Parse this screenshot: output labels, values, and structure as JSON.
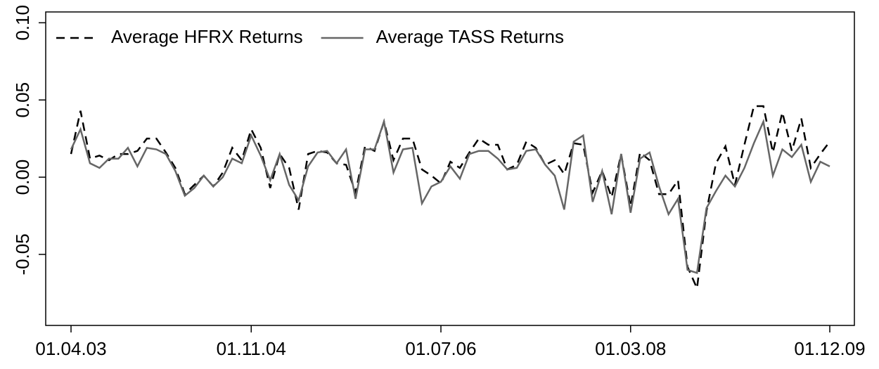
{
  "chart_data": {
    "type": "line",
    "categories": [
      "01.04.03",
      null,
      null,
      null,
      null,
      null,
      null,
      null,
      null,
      null,
      null,
      null,
      null,
      null,
      null,
      null,
      null,
      null,
      null,
      "01.11.04",
      null,
      null,
      null,
      null,
      null,
      null,
      null,
      null,
      null,
      null,
      null,
      null,
      null,
      null,
      null,
      null,
      null,
      null,
      null,
      "01.07.06",
      null,
      null,
      null,
      null,
      null,
      null,
      null,
      null,
      null,
      null,
      null,
      null,
      null,
      null,
      null,
      null,
      null,
      null,
      null,
      "01.03.08",
      null,
      null,
      null,
      null,
      null,
      null,
      null,
      null,
      null,
      null,
      null,
      null,
      null,
      null,
      null,
      null,
      null,
      null,
      null,
      null,
      "01.12.09"
    ],
    "series": [
      {
        "name": "Average HFRX Returns",
        "color": "#000000",
        "linestyle": "dashed",
        "values": [
          0.015,
          0.043,
          0.012,
          0.014,
          0.011,
          0.015,
          0.015,
          0.017,
          0.025,
          0.025,
          0.016,
          0.006,
          -0.011,
          -0.005,
          0.001,
          -0.006,
          0.003,
          0.019,
          0.011,
          0.031,
          0.019,
          -0.007,
          0.015,
          0.006,
          -0.021,
          0.015,
          0.017,
          0.016,
          0.009,
          0.008,
          -0.01,
          0.02,
          0.017,
          0.036,
          0.011,
          0.025,
          0.025,
          0.005,
          0.001,
          -0.004,
          0.01,
          0.006,
          0.016,
          0.025,
          0.021,
          0.021,
          0.005,
          0.008,
          0.023,
          0.019,
          0.008,
          0.011,
          0.002,
          0.022,
          0.021,
          -0.01,
          0.004,
          -0.013,
          0.015,
          -0.019,
          0.016,
          0.011,
          -0.011,
          -0.011,
          -0.002,
          -0.058,
          -0.072,
          -0.022,
          0.009,
          0.02,
          -0.005,
          0.021,
          0.046,
          0.046,
          0.016,
          0.042,
          0.017,
          0.038,
          0.006,
          0.015,
          0.023
        ]
      },
      {
        "name": "Average TASS Returns",
        "color": "#666666",
        "linestyle": "solid",
        "values": [
          0.018,
          0.031,
          0.009,
          0.006,
          0.012,
          0.012,
          0.019,
          0.007,
          0.019,
          0.018,
          0.015,
          0.004,
          -0.012,
          -0.007,
          0.001,
          -0.006,
          0.0,
          0.012,
          0.009,
          0.027,
          0.014,
          -0.002,
          0.015,
          -0.005,
          -0.015,
          0.007,
          0.016,
          0.017,
          0.009,
          0.018,
          -0.014,
          0.018,
          0.018,
          0.036,
          0.003,
          0.018,
          0.019,
          -0.017,
          -0.006,
          -0.003,
          0.007,
          -0.001,
          0.015,
          0.017,
          0.017,
          0.012,
          0.005,
          0.006,
          0.017,
          0.018,
          0.008,
          0.001,
          -0.021,
          0.023,
          0.027,
          -0.016,
          0.004,
          -0.024,
          0.015,
          -0.023,
          0.012,
          0.016,
          -0.006,
          -0.024,
          -0.014,
          -0.06,
          -0.062,
          -0.02,
          -0.009,
          0.001,
          -0.006,
          0.006,
          0.022,
          0.036,
          0.001,
          0.018,
          0.013,
          0.021,
          -0.003,
          0.01,
          0.007
        ]
      }
    ],
    "ylim": [
      -0.096,
      0.107
    ],
    "yticks": [
      {
        "value": -0.05,
        "label": "-0.05"
      },
      {
        "value": 0,
        "label": "0.00"
      },
      {
        "value": 0.05,
        "label": "0.05"
      },
      {
        "value": 0.1,
        "label": "0.10"
      }
    ],
    "legend": "top-left"
  }
}
